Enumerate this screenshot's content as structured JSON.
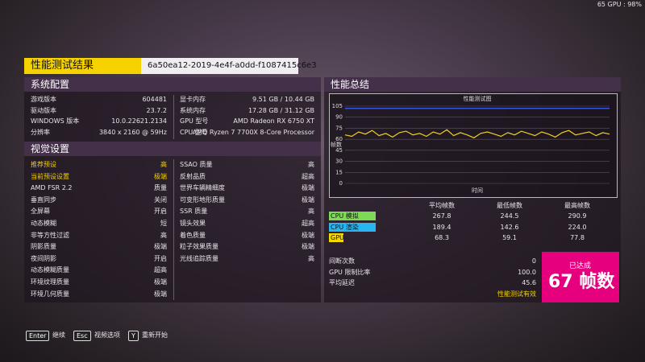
{
  "overlay": "65 GPU : 98%",
  "title": "性能测试结果",
  "run_id": "6a50ea12-2019-4e4f-a0dd-f1087415c6e3",
  "system": {
    "heading": "系统配置",
    "left": [
      [
        "游戏版本",
        "604481"
      ],
      [
        "驱动版本",
        "23.7.2"
      ],
      [
        "WINDOWS 版本",
        "10.0.22621.2134"
      ],
      [
        "分辨率",
        "3840 x 2160 @ 59Hz"
      ]
    ],
    "right": [
      [
        "显卡内存",
        "9.51 GB / 10.44 GB"
      ],
      [
        "系统内存",
        "17.28 GB / 31.12 GB"
      ],
      [
        "GPU 型号",
        "AMD Radeon RX 6750 XT"
      ],
      [
        "CPU 型号",
        "AMD Ryzen 7 7700X 8-Core Processor"
      ]
    ]
  },
  "visual": {
    "heading": "视觉设置",
    "left": [
      [
        "推荐预设",
        "高"
      ],
      [
        "当前预设设置",
        "极端"
      ],
      [
        "AMD FSR 2.2",
        "质量"
      ],
      [
        "垂直同步",
        "关闭"
      ],
      [
        "全屏幕",
        "开启"
      ],
      [
        "动态模糊",
        "短"
      ],
      [
        "非等方性过滤",
        "高"
      ],
      [
        "阴影质量",
        "极端"
      ],
      [
        "夜间阴影",
        "开启"
      ],
      [
        "动态模糊质量",
        "超高"
      ],
      [
        "环境纹理质量",
        "极端"
      ],
      [
        "环境几何质量",
        "极端"
      ]
    ],
    "right": [
      [
        "SSAO 质量",
        "高"
      ],
      [
        "反射品质",
        "超高"
      ],
      [
        "世界车辆精细度",
        "极端"
      ],
      [
        "可变形地形质量",
        "极端"
      ],
      [
        "SSR 质量",
        "高"
      ],
      [
        "镜头效果",
        "超高"
      ],
      [
        "着色质量",
        "极端"
      ],
      [
        "粒子效果质量",
        "极端"
      ],
      [
        "光线追踪质量",
        "高"
      ]
    ]
  },
  "summary": {
    "heading": "性能总结",
    "table": {
      "headers": [
        "平均帧数",
        "最低帧数",
        "最高帧数"
      ],
      "rows": [
        {
          "label": "CPU 模拟",
          "color": "#7ed957",
          "values": [
            "267.8",
            "244.5",
            "290.9"
          ]
        },
        {
          "label": "CPU 渲染",
          "color": "#29b6f0",
          "values": [
            "189.4",
            "142.6",
            "224.0"
          ]
        },
        {
          "label": "GPU",
          "color": "#f5d800",
          "values": [
            "68.3",
            "59.1",
            "77.8"
          ]
        }
      ]
    },
    "stats": [
      [
        "间断次数",
        "0"
      ],
      [
        "GPU 限制比率",
        "100.0"
      ],
      [
        "平均延迟",
        "45.6"
      ]
    ],
    "valid": "性能测试有效",
    "badge_top": "已达成",
    "badge_main": "67 帧数"
  },
  "chart_data": {
    "type": "line",
    "title": "性能测试图",
    "y_label": "帧数",
    "x_label": "时间",
    "ylim": [
      0,
      105
    ],
    "yticks": [
      0,
      15,
      30,
      45,
      60,
      75,
      90,
      105
    ],
    "grid": true,
    "reference_line": {
      "value": 102,
      "color": "#3a5fff"
    },
    "series": [
      {
        "color": "#f0d020",
        "values": [
          66,
          64,
          70,
          67,
          72,
          65,
          68,
          63,
          69,
          71,
          66,
          68,
          64,
          70,
          67,
          73,
          65,
          69,
          66,
          62,
          68,
          70,
          67,
          64,
          69,
          66,
          71,
          68,
          65,
          70,
          67,
          63,
          69,
          72,
          66,
          68,
          70,
          65,
          69,
          67
        ]
      }
    ]
  },
  "footer": [
    {
      "key": "Enter",
      "label": "继续"
    },
    {
      "key": "Esc",
      "label": "视频选项"
    },
    {
      "key": "Y",
      "label": "重新开始"
    }
  ]
}
